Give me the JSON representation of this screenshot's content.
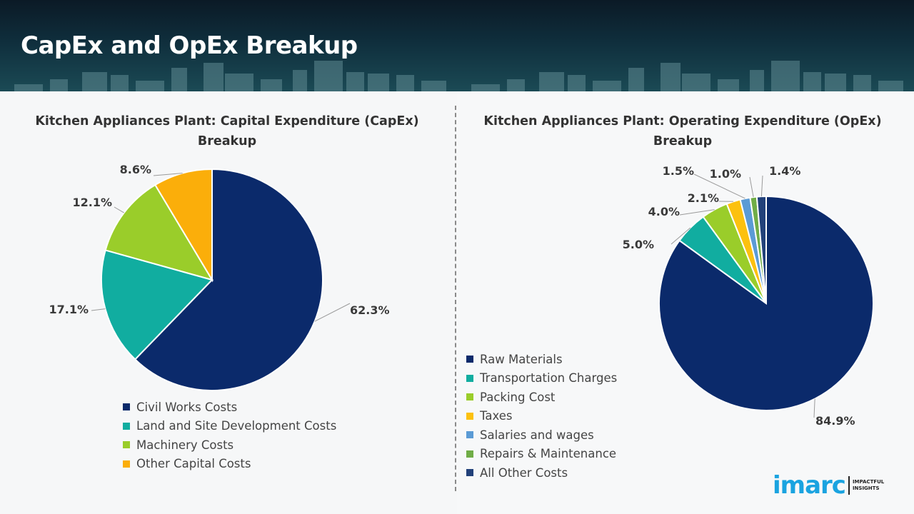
{
  "header": {
    "title": "CapEx and OpEx Breakup"
  },
  "logo": {
    "brand": "imarc",
    "tagline_1": "IMPACTFUL",
    "tagline_2": "INSIGHTS"
  },
  "colors": {
    "navy": "#0b2a6b",
    "teal": "#11ada0",
    "lime": "#9acd2a",
    "amber": "#fbae0a",
    "gold": "#fcc10f",
    "skyblue": "#5b9bd5",
    "green": "#70ad47",
    "darkblue": "#22417a"
  },
  "chart_data": [
    {
      "type": "pie",
      "title_line1": "Kitchen Appliances Plant: Capital Expenditure (CapEx)",
      "title_line2": "Breakup",
      "legend_position": "bottom",
      "slices": [
        {
          "label": "Civil Works Costs",
          "value": 62.3,
          "display": "62.3%",
          "color": "#0b2a6b"
        },
        {
          "label": "Land and Site Development Costs",
          "value": 17.1,
          "display": "17.1%",
          "color": "#11ada0"
        },
        {
          "label": "Machinery Costs",
          "value": 12.1,
          "display": "12.1%",
          "color": "#9acd2a"
        },
        {
          "label": "Other Capital Costs",
          "value": 8.6,
          "display": "8.6%",
          "color": "#fbae0a"
        }
      ]
    },
    {
      "type": "pie",
      "title_line1": "Kitchen Appliances Plant: Operating Expenditure (OpEx)",
      "title_line2": "Breakup",
      "legend_position": "bottom-left",
      "slices": [
        {
          "label": "Raw Materials",
          "value": 84.9,
          "display": "84.9%",
          "color": "#0b2a6b"
        },
        {
          "label": "Transportation Charges",
          "value": 5.0,
          "display": "5.0%",
          "color": "#11ada0"
        },
        {
          "label": "Packing Cost",
          "value": 4.0,
          "display": "4.0%",
          "color": "#9acd2a"
        },
        {
          "label": "Taxes",
          "value": 2.1,
          "display": "2.1%",
          "color": "#fcc10f"
        },
        {
          "label": "Salaries and wages",
          "value": 1.5,
          "display": "1.5%",
          "color": "#5b9bd5"
        },
        {
          "label": "Repairs & Maintenance",
          "value": 1.0,
          "display": "1.0%",
          "color": "#70ad47"
        },
        {
          "label": "All Other Costs",
          "value": 1.4,
          "display": "1.4%",
          "color": "#22417a"
        }
      ]
    }
  ]
}
